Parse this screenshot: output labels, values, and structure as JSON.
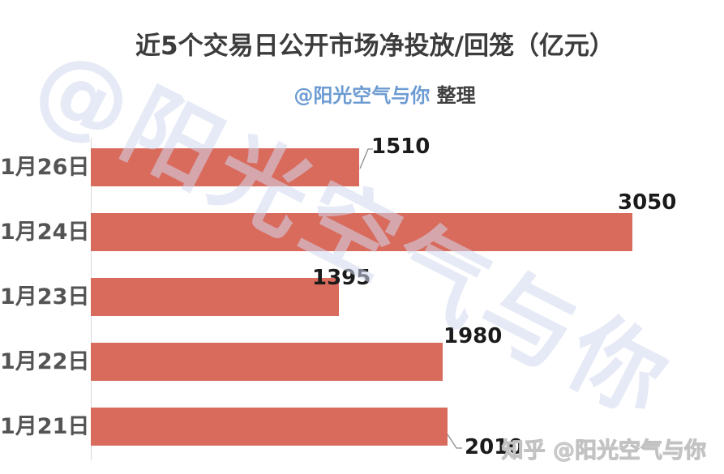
{
  "chart": {
    "title": "近5个交易日公开市场净投放/回笼（亿元）",
    "subtitle_handle": "@阳光空气与你",
    "subtitle_suffix": " 整理"
  },
  "chart_data": {
    "type": "bar",
    "orientation": "horizontal",
    "title": "近5个交易日公开市场净投放/回笼（亿元）",
    "subtitle": "@阳光空气与你 整理",
    "categories": [
      "1月26日",
      "1月24日",
      "1月23日",
      "1月22日",
      "1月21日"
    ],
    "values": [
      1510,
      3050,
      1395,
      1980,
      2010
    ],
    "xlabel": "",
    "ylabel": "",
    "xlim": [
      0,
      3050
    ],
    "grid": false,
    "legend": false,
    "value_labels_shown": true,
    "bar_color": "#d96b5d"
  },
  "watermarks": {
    "diagonal": "@阳光空气与你",
    "bottom_right": "知乎 @阳光空气与你"
  },
  "colors": {
    "bar": "#d96b5d",
    "title": "#3c3c3c",
    "subtitle_handle": "#6c9bd2",
    "subtitle_suffix": "#3f3f3f",
    "category_label": "#545454",
    "value_label": "#1b1b1b",
    "axis_line": "#d9d9d9",
    "leader_line": "#8c8c8c",
    "diagonal_watermark": "rgba(210,216,238,0.55)",
    "bottom_right_watermark": "#cccccc"
  }
}
